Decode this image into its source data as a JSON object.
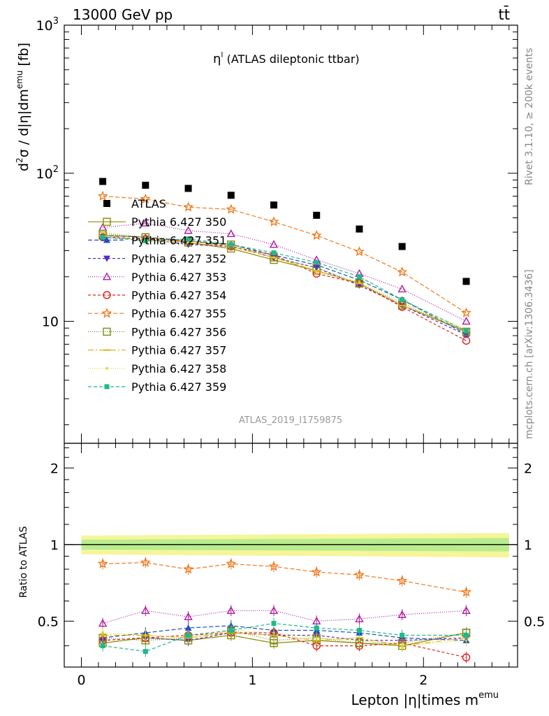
{
  "header": {
    "energy_label": "13000 GeV pp",
    "process_label": "tt̄",
    "plot_title_symbol": "η",
    "plot_title_sup": "l",
    "plot_title_text": " (ATLAS dileptonic ttbar)",
    "analysis_id": "ATLAS_2019_I1759875",
    "side_label_top": "Rivet 3.1.10, ≥ 200k events",
    "side_label_bottom": "mcplots.cern.ch [arXiv:1306.3436]"
  },
  "axes": {
    "y_label_main": "d²σ / d|η|dm^emu [fb]",
    "y_label_ratio": "Ratio to ATLAS",
    "x_label": "Lepton |η|times m",
    "x_label_sup": "emu",
    "main_y_ticks": [
      "10",
      "10²",
      "10³"
    ],
    "ratio_y_ticks": [
      "0.5",
      "1",
      "2"
    ],
    "x_ticks": [
      "0",
      "1",
      "2"
    ]
  },
  "chart_data": {
    "type": "scatter",
    "x": [
      0.125,
      0.375,
      0.625,
      0.875,
      1.125,
      1.375,
      1.625,
      1.875,
      2.25
    ],
    "xlim": [
      -0.1,
      2.55
    ],
    "main_ylim": [
      1.5,
      1000
    ],
    "main_yscale": "log",
    "ratio_ylim": [
      0.33,
      2.5
    ],
    "ratio_yscale": "log",
    "legend_position": "middle-left",
    "series": [
      {
        "name": "ATLAS",
        "color": "#000000",
        "marker": "square-filled",
        "dash": "",
        "values": [
          88,
          83,
          79,
          71,
          61,
          52,
          42,
          32,
          18.6
        ],
        "ratio": [
          1,
          1,
          1,
          1,
          1,
          1,
          1,
          1,
          1
        ]
      },
      {
        "name": "Pythia 6.427 350",
        "color": "#8b8b00",
        "marker": "square-open",
        "dash": "2,0",
        "values": [
          38,
          37,
          34,
          31,
          26,
          22,
          18,
          12.8,
          8.5
        ],
        "ratio": [
          0.41,
          0.43,
          0.42,
          0.44,
          0.41,
          0.42,
          0.41,
          0.4,
          0.45
        ]
      },
      {
        "name": "Pythia 6.427 351",
        "color": "#1f4fbf",
        "marker": "triangle-up-filled",
        "dash": "6,3",
        "values": [
          38,
          37,
          35,
          33,
          28,
          24,
          19,
          14,
          8.2
        ],
        "ratio": [
          0.43,
          0.45,
          0.47,
          0.48,
          0.46,
          0.46,
          0.45,
          0.43,
          0.42
        ]
      },
      {
        "name": "Pythia 6.427 352",
        "color": "#5a2bbf",
        "marker": "triangle-down-filled",
        "dash": "4,3",
        "values": [
          37,
          36,
          33,
          32,
          27,
          23,
          17.5,
          12.8,
          8.1
        ],
        "ratio": [
          0.42,
          0.43,
          0.42,
          0.45,
          0.44,
          0.44,
          0.42,
          0.42,
          0.43
        ]
      },
      {
        "name": "Pythia 6.427 353",
        "color": "#b01c9e",
        "marker": "triangle-up-open",
        "dash": "1,2",
        "values": [
          43,
          46,
          41,
          39,
          33,
          26,
          21,
          16.5,
          10
        ],
        "ratio": [
          0.49,
          0.55,
          0.52,
          0.55,
          0.55,
          0.5,
          0.51,
          0.53,
          0.55
        ]
      },
      {
        "name": "Pythia 6.427 354",
        "color": "#e0201b",
        "marker": "circle-open",
        "dash": "4,3",
        "values": [
          37,
          36,
          35,
          32,
          28,
          21,
          18,
          12.5,
          7.4
        ],
        "ratio": [
          0.42,
          0.43,
          0.44,
          0.45,
          0.45,
          0.4,
          0.4,
          0.41,
          0.36
        ]
      },
      {
        "name": "Pythia 6.427 355",
        "color": "#f07a1e",
        "marker": "star-open",
        "dash": "6,3",
        "values": [
          70,
          67,
          59,
          57,
          47,
          38,
          29.5,
          21.5,
          11.4
        ],
        "ratio": [
          0.84,
          0.85,
          0.8,
          0.84,
          0.82,
          0.78,
          0.76,
          0.72,
          0.65
        ]
      },
      {
        "name": "Pythia 6.427 356",
        "color": "#7d8b1e",
        "marker": "square-open",
        "dash": "1,2",
        "values": [
          39,
          37,
          35,
          33,
          27,
          23,
          18,
          13.2,
          8.5
        ],
        "ratio": [
          0.43,
          0.42,
          0.43,
          0.46,
          0.42,
          0.43,
          0.41,
          0.41,
          0.45
        ]
      },
      {
        "name": "Pythia 6.427 357",
        "color": "#e0b51a",
        "marker": "dash",
        "dash": "8,3,2,3",
        "values": [
          38,
          35,
          34,
          32,
          27,
          22,
          18,
          12.8,
          8.7
        ],
        "ratio": [
          0.44,
          0.44,
          0.43,
          0.45,
          0.44,
          0.42,
          0.43,
          0.4,
          0.43
        ]
      },
      {
        "name": "Pythia 6.427 358",
        "color": "#d8d820",
        "marker": "dot",
        "dash": "1,2",
        "values": [
          40,
          37,
          34,
          33,
          27,
          21.5,
          18.5,
          13.5,
          8.8
        ],
        "ratio": [
          0.45,
          0.44,
          0.43,
          0.46,
          0.45,
          0.43,
          0.42,
          0.4,
          0.42
        ]
      },
      {
        "name": "Pythia 6.427 359",
        "color": "#20b88a",
        "marker": "square-filled-small",
        "dash": "5,3",
        "values": [
          37,
          35,
          36,
          33,
          29,
          25,
          20,
          14,
          8.6
        ],
        "ratio": [
          0.4,
          0.38,
          0.44,
          0.46,
          0.49,
          0.47,
          0.46,
          0.44,
          0.44
        ]
      }
    ]
  }
}
